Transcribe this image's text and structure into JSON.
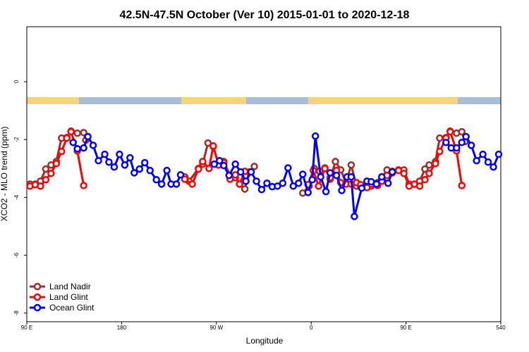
{
  "chart_data": {
    "type": "line",
    "title": "42.5N-47.5N October (Ver 10)   2015-01-01 to 2020-12-18",
    "x_label": "Longitude",
    "y_label": "XCO2 - MLO trend (ppm)",
    "xlim": [
      90,
      540
    ],
    "xticks": [
      {
        "value": 90,
        "label": "90 E"
      },
      180,
      {
        "value": 270,
        "label": "90 W"
      },
      {
        "value": 360,
        "label": "0"
      },
      {
        "value": 450,
        "label": "90 E"
      },
      540
    ],
    "ylim": [
      -8.3,
      1.9
    ],
    "yticks": [
      -8,
      -6,
      -4,
      -2,
      0
    ],
    "legend": "bottom-left",
    "series": [
      {
        "name": "Land Nadir",
        "color": "#a52a2a",
        "x": [
          93,
          98,
          103,
          108,
          113,
          118,
          123,
          128,
          132,
          138,
          144,
          146,
          190,
          240,
          244,
          253,
          257,
          262,
          267,
          272,
          277,
          283,
          288,
          292,
          297,
          301,
          306,
          330,
          352,
          358,
          363,
          368,
          373,
          378,
          383,
          388,
          393,
          398,
          403,
          407,
          413,
          417,
          423,
          427,
          432,
          437,
          443,
          448,
          453,
          458,
          463,
          468,
          472,
          478,
          482,
          488,
          492,
          498,
          503,
          506
        ],
        "values": [
          -3.54,
          -3.54,
          -3.44,
          -3.02,
          -2.88,
          -2.76,
          -1.95,
          -1.93,
          -1.71,
          -1.78,
          -1.76,
          -2.02,
          null,
          -3.29,
          -3.44,
          -3.0,
          -2.85,
          -2.12,
          -2.24,
          -2.85,
          -2.76,
          -3.24,
          -3.32,
          -3.54,
          -3.71,
          -3.12,
          -2.93,
          null,
          -3.85,
          -3.61,
          -3.0,
          -3.1,
          -2.98,
          -3.37,
          -2.76,
          -3.05,
          -3.49,
          -2.88,
          -3.61,
          -3.61,
          -3.54,
          -3.61,
          -3.49,
          -3.32,
          -3.05,
          -3.1,
          -3.05,
          -3.05,
          -3.54,
          -3.54,
          -3.44,
          -3.02,
          -2.88,
          -2.76,
          -1.95,
          -1.93,
          -1.71,
          -1.78,
          -1.73,
          -2.07
        ]
      },
      {
        "name": "Land Glint",
        "color": "#ff0000",
        "x": [
          93,
          98,
          103,
          108,
          113,
          118,
          123,
          128,
          132,
          138,
          144,
          190,
          240,
          247,
          253,
          257,
          263,
          267,
          272,
          277,
          283,
          288,
          292,
          297,
          330,
          357,
          362,
          367,
          373,
          378,
          384,
          388,
          393,
          398,
          403,
          407,
          413,
          417,
          423,
          427,
          432,
          437,
          443,
          448,
          453,
          458,
          463,
          468,
          472,
          478,
          482,
          488,
          492,
          498,
          503
        ],
        "values": [
          -3.61,
          -3.56,
          -3.61,
          -3.39,
          -3.17,
          -2.83,
          -2.41,
          -1.95,
          -1.73,
          -2.39,
          -3.59,
          null,
          -3.37,
          -3.54,
          -3.02,
          -2.76,
          -3.0,
          -2.22,
          -2.88,
          -2.8,
          -3.37,
          -3.22,
          -3.54,
          -3.1,
          null,
          -3.56,
          -3.07,
          -3.61,
          -3.0,
          -3.32,
          -3.07,
          -3.49,
          -3.54,
          -3.54,
          -3.49,
          -3.56,
          -3.66,
          -3.54,
          -3.59,
          -3.44,
          -3.24,
          -3.15,
          -3.07,
          -3.17,
          -3.61,
          -3.54,
          -3.61,
          -3.39,
          -3.17,
          -2.83,
          -2.41,
          -1.95,
          -1.73,
          -2.39,
          -3.59
        ]
      },
      {
        "name": "Ocean Glint",
        "color": "#0000ff",
        "x": [
          134,
          138,
          144,
          148,
          153,
          158,
          164,
          168,
          173,
          178,
          183,
          188,
          192,
          197,
          202,
          207,
          213,
          218,
          223,
          227,
          232,
          236,
          250,
          268,
          273,
          277,
          282,
          288,
          293,
          298,
          303,
          308,
          313,
          318,
          323,
          328,
          333,
          338,
          343,
          348,
          352,
          357,
          361,
          364,
          369,
          374,
          378,
          384,
          389,
          394,
          398,
          401,
          408,
          413,
          417,
          422,
          427,
          433,
          437,
          460,
          488,
          493,
          498,
          503,
          507,
          512,
          517,
          523,
          528,
          533,
          538
        ],
        "values": [
          -2.1,
          -2.32,
          -2.29,
          -1.9,
          -2.2,
          -2.73,
          -2.51,
          -2.78,
          -2.95,
          -2.51,
          -2.88,
          -2.63,
          -3.15,
          -3.02,
          -2.8,
          -3.07,
          -3.39,
          -3.54,
          -3.07,
          -3.54,
          -3.54,
          -3.22,
          null,
          -2.85,
          -2.73,
          -2.9,
          -3.24,
          -2.85,
          -3.12,
          -3.44,
          -3.12,
          -3.44,
          -3.73,
          -3.51,
          -3.63,
          -3.61,
          -3.51,
          -2.98,
          -3.61,
          -3.51,
          -3.2,
          -3.83,
          -3.39,
          -1.88,
          -3.29,
          -3.8,
          -3.15,
          -3.24,
          -3.76,
          -3.29,
          -3.29,
          -4.66,
          -3.68,
          -3.44,
          -3.46,
          -3.54,
          -3.29,
          -3.51,
          -3.12,
          null,
          -2.1,
          -2.29,
          -2.29,
          -2.1,
          -1.9,
          -2.2,
          -2.73,
          -2.51,
          -2.78,
          -2.95,
          -2.51
        ]
      }
    ]
  }
}
